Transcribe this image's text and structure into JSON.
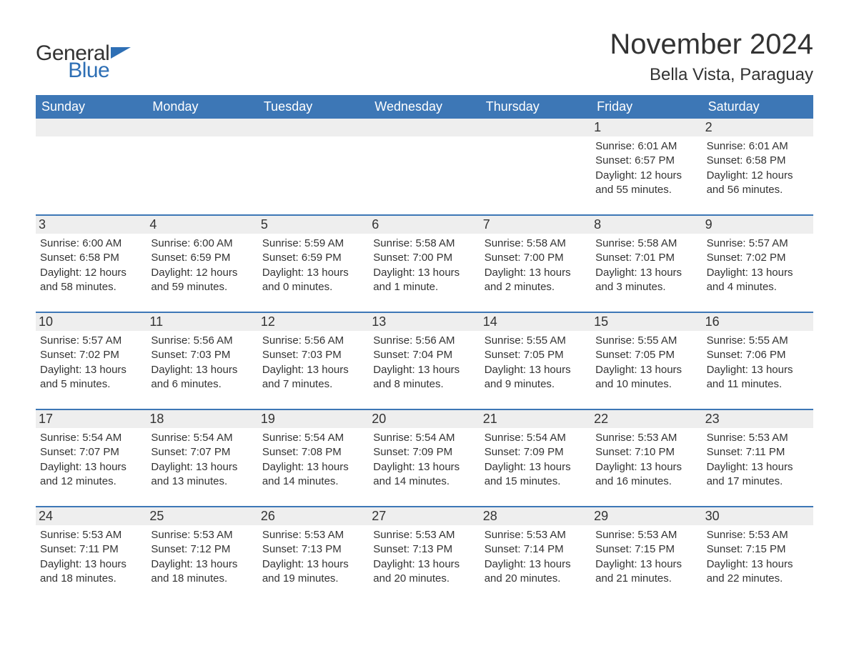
{
  "logo": {
    "line1": "General",
    "line2": "Blue",
    "tri_color": "#2e6fb5",
    "text_color": "#333333"
  },
  "title": "November 2024",
  "location": "Bella Vista, Paraguay",
  "colors": {
    "header_bg": "#3d77b6",
    "header_text": "#ffffff",
    "daynum_bg": "#eeeeee",
    "body_text": "#333333",
    "week_border": "#3d77b6",
    "page_bg": "#ffffff"
  },
  "weekdays": [
    "Sunday",
    "Monday",
    "Tuesday",
    "Wednesday",
    "Thursday",
    "Friday",
    "Saturday"
  ],
  "weeks": [
    [
      {
        "n": "",
        "empty": true
      },
      {
        "n": "",
        "empty": true
      },
      {
        "n": "",
        "empty": true
      },
      {
        "n": "",
        "empty": true
      },
      {
        "n": "",
        "empty": true
      },
      {
        "n": "1",
        "sunrise": "Sunrise: 6:01 AM",
        "sunset": "Sunset: 6:57 PM",
        "day1": "Daylight: 12 hours",
        "day2": "and 55 minutes."
      },
      {
        "n": "2",
        "sunrise": "Sunrise: 6:01 AM",
        "sunset": "Sunset: 6:58 PM",
        "day1": "Daylight: 12 hours",
        "day2": "and 56 minutes."
      }
    ],
    [
      {
        "n": "3",
        "sunrise": "Sunrise: 6:00 AM",
        "sunset": "Sunset: 6:58 PM",
        "day1": "Daylight: 12 hours",
        "day2": "and 58 minutes."
      },
      {
        "n": "4",
        "sunrise": "Sunrise: 6:00 AM",
        "sunset": "Sunset: 6:59 PM",
        "day1": "Daylight: 12 hours",
        "day2": "and 59 minutes."
      },
      {
        "n": "5",
        "sunrise": "Sunrise: 5:59 AM",
        "sunset": "Sunset: 6:59 PM",
        "day1": "Daylight: 13 hours",
        "day2": "and 0 minutes."
      },
      {
        "n": "6",
        "sunrise": "Sunrise: 5:58 AM",
        "sunset": "Sunset: 7:00 PM",
        "day1": "Daylight: 13 hours",
        "day2": "and 1 minute."
      },
      {
        "n": "7",
        "sunrise": "Sunrise: 5:58 AM",
        "sunset": "Sunset: 7:00 PM",
        "day1": "Daylight: 13 hours",
        "day2": "and 2 minutes."
      },
      {
        "n": "8",
        "sunrise": "Sunrise: 5:58 AM",
        "sunset": "Sunset: 7:01 PM",
        "day1": "Daylight: 13 hours",
        "day2": "and 3 minutes."
      },
      {
        "n": "9",
        "sunrise": "Sunrise: 5:57 AM",
        "sunset": "Sunset: 7:02 PM",
        "day1": "Daylight: 13 hours",
        "day2": "and 4 minutes."
      }
    ],
    [
      {
        "n": "10",
        "sunrise": "Sunrise: 5:57 AM",
        "sunset": "Sunset: 7:02 PM",
        "day1": "Daylight: 13 hours",
        "day2": "and 5 minutes."
      },
      {
        "n": "11",
        "sunrise": "Sunrise: 5:56 AM",
        "sunset": "Sunset: 7:03 PM",
        "day1": "Daylight: 13 hours",
        "day2": "and 6 minutes."
      },
      {
        "n": "12",
        "sunrise": "Sunrise: 5:56 AM",
        "sunset": "Sunset: 7:03 PM",
        "day1": "Daylight: 13 hours",
        "day2": "and 7 minutes."
      },
      {
        "n": "13",
        "sunrise": "Sunrise: 5:56 AM",
        "sunset": "Sunset: 7:04 PM",
        "day1": "Daylight: 13 hours",
        "day2": "and 8 minutes."
      },
      {
        "n": "14",
        "sunrise": "Sunrise: 5:55 AM",
        "sunset": "Sunset: 7:05 PM",
        "day1": "Daylight: 13 hours",
        "day2": "and 9 minutes."
      },
      {
        "n": "15",
        "sunrise": "Sunrise: 5:55 AM",
        "sunset": "Sunset: 7:05 PM",
        "day1": "Daylight: 13 hours",
        "day2": "and 10 minutes."
      },
      {
        "n": "16",
        "sunrise": "Sunrise: 5:55 AM",
        "sunset": "Sunset: 7:06 PM",
        "day1": "Daylight: 13 hours",
        "day2": "and 11 minutes."
      }
    ],
    [
      {
        "n": "17",
        "sunrise": "Sunrise: 5:54 AM",
        "sunset": "Sunset: 7:07 PM",
        "day1": "Daylight: 13 hours",
        "day2": "and 12 minutes."
      },
      {
        "n": "18",
        "sunrise": "Sunrise: 5:54 AM",
        "sunset": "Sunset: 7:07 PM",
        "day1": "Daylight: 13 hours",
        "day2": "and 13 minutes."
      },
      {
        "n": "19",
        "sunrise": "Sunrise: 5:54 AM",
        "sunset": "Sunset: 7:08 PM",
        "day1": "Daylight: 13 hours",
        "day2": "and 14 minutes."
      },
      {
        "n": "20",
        "sunrise": "Sunrise: 5:54 AM",
        "sunset": "Sunset: 7:09 PM",
        "day1": "Daylight: 13 hours",
        "day2": "and 14 minutes."
      },
      {
        "n": "21",
        "sunrise": "Sunrise: 5:54 AM",
        "sunset": "Sunset: 7:09 PM",
        "day1": "Daylight: 13 hours",
        "day2": "and 15 minutes."
      },
      {
        "n": "22",
        "sunrise": "Sunrise: 5:53 AM",
        "sunset": "Sunset: 7:10 PM",
        "day1": "Daylight: 13 hours",
        "day2": "and 16 minutes."
      },
      {
        "n": "23",
        "sunrise": "Sunrise: 5:53 AM",
        "sunset": "Sunset: 7:11 PM",
        "day1": "Daylight: 13 hours",
        "day2": "and 17 minutes."
      }
    ],
    [
      {
        "n": "24",
        "sunrise": "Sunrise: 5:53 AM",
        "sunset": "Sunset: 7:11 PM",
        "day1": "Daylight: 13 hours",
        "day2": "and 18 minutes."
      },
      {
        "n": "25",
        "sunrise": "Sunrise: 5:53 AM",
        "sunset": "Sunset: 7:12 PM",
        "day1": "Daylight: 13 hours",
        "day2": "and 18 minutes."
      },
      {
        "n": "26",
        "sunrise": "Sunrise: 5:53 AM",
        "sunset": "Sunset: 7:13 PM",
        "day1": "Daylight: 13 hours",
        "day2": "and 19 minutes."
      },
      {
        "n": "27",
        "sunrise": "Sunrise: 5:53 AM",
        "sunset": "Sunset: 7:13 PM",
        "day1": "Daylight: 13 hours",
        "day2": "and 20 minutes."
      },
      {
        "n": "28",
        "sunrise": "Sunrise: 5:53 AM",
        "sunset": "Sunset: 7:14 PM",
        "day1": "Daylight: 13 hours",
        "day2": "and 20 minutes."
      },
      {
        "n": "29",
        "sunrise": "Sunrise: 5:53 AM",
        "sunset": "Sunset: 7:15 PM",
        "day1": "Daylight: 13 hours",
        "day2": "and 21 minutes."
      },
      {
        "n": "30",
        "sunrise": "Sunrise: 5:53 AM",
        "sunset": "Sunset: 7:15 PM",
        "day1": "Daylight: 13 hours",
        "day2": "and 22 minutes."
      }
    ]
  ]
}
